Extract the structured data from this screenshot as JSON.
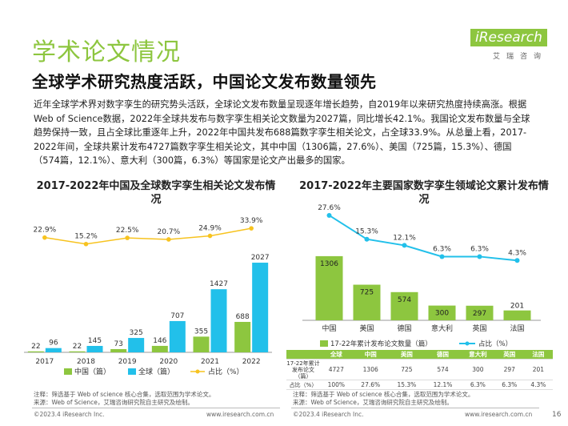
{
  "header": {
    "title": "学术论文情况",
    "subtitle": "全球学术研究热度活跃，中国论文发布数量领先",
    "logo_text": "iResearch",
    "logo_sub": "艾瑞咨询"
  },
  "body_text": "近年全球学术界对数字孪生的研究势头活跃，全球论文发布数量呈现逐年增长趋势，自2019年以来研究热度持续高涨。根据Web of Science数据，2022年全球共发布与数字孪生相关论文数量为2027篇，同比增长42.1%。我国论文发布数量与全球趋势保持一致，且占全球比重逐年上升，2022年中国共发布688篇数字孪生相关论文，占全球33.9%。从总量上看，2017-2022年间，全球共累计发布4727篇数字孪生相关论文，其中中国（1306篇，27.6%）、美国（725篇，15.3%）、德国（574篇，12.1%）、意大利（300篇，6.3%）等国家是论文产出最多的国家。",
  "chart_data": [
    {
      "type": "bar",
      "title": "2017-2022年中国及全球数字孪生相关论文发布情况",
      "categories": [
        "2017",
        "2018",
        "2019",
        "2020",
        "2021",
        "2022"
      ],
      "series": [
        {
          "name": "中国（篇）",
          "values": [
            22,
            22,
            73,
            146,
            355,
            688
          ]
        },
        {
          "name": "全球（篇）",
          "values": [
            96,
            145,
            325,
            707,
            1427,
            2027
          ]
        },
        {
          "name": "占比（%）",
          "type": "line",
          "values": [
            22.9,
            15.2,
            22.5,
            20.7,
            24.9,
            33.9
          ]
        }
      ],
      "value_labels": {
        "china": [
          "22",
          "22",
          "73",
          "146",
          "355",
          "688"
        ],
        "global": [
          "96",
          "145",
          "325",
          "707",
          "1427",
          "2027"
        ],
        "ratio": [
          "22.9%",
          "15.2%",
          "22.5%",
          "20.7%",
          "24.9%",
          "33.9%"
        ]
      },
      "ylim": [
        0,
        2100
      ],
      "ratio_range": [
        0,
        40
      ],
      "colors": {
        "china": "#8dc63f",
        "global": "#22c0ea",
        "ratio": "#f7c31f"
      },
      "legend": "bottom"
    },
    {
      "type": "bar",
      "title": "2017-2022年主要国家数字孪生领域论文累计发布情况",
      "categories": [
        "中国",
        "美国",
        "德国",
        "意大利",
        "英国",
        "法国"
      ],
      "series": [
        {
          "name": "17-22年累计发布论文数量（篇）",
          "values": [
            1306,
            725,
            574,
            300,
            297,
            201
          ]
        },
        {
          "name": "占比（%）",
          "type": "line",
          "values": [
            27.6,
            15.3,
            12.1,
            6.3,
            6.3,
            4.3
          ]
        }
      ],
      "value_labels": {
        "bars": [
          "1306",
          "725",
          "574",
          "300",
          "297",
          "201"
        ],
        "ratio": [
          "27.6%",
          "15.3%",
          "12.1%",
          "6.3%",
          "6.3%",
          "4.3%"
        ]
      },
      "ylim": [
        0,
        1500
      ],
      "ratio_range": [
        0,
        30
      ],
      "colors": {
        "bar": "#8dc63f",
        "ratio": "#22c0ea"
      },
      "legend": "bottom"
    }
  ],
  "table": {
    "headers": [
      "",
      "全球",
      "中国",
      "美国",
      "德国",
      "意大利",
      "英国",
      "法国"
    ],
    "rows": [
      {
        "label": "17-22年累计发布论文（篇）",
        "values": [
          "4727",
          "1306",
          "725",
          "574",
          "300",
          "297",
          "201"
        ]
      },
      {
        "label": "占比（%）",
        "values": [
          "100%",
          "27.6%",
          "15.3%",
          "12.1%",
          "6.3%",
          "6.3%",
          "4.3%"
        ]
      }
    ]
  },
  "notes": {
    "left": [
      "注释：筛选基于 Web of science 核心合集，选取范围为学术论文。",
      "来源：Web of Science，艾瑞咨询研究院自主研究及绘制。"
    ],
    "right": [
      "注释：筛选基于 Web of science 核心合集，选取范围为学术论文。",
      "来源：Web of Science，艾瑞咨询研究院自主研究及绘制。"
    ]
  },
  "footer": {
    "copyright": "©2023.4 iResearch Inc.",
    "url": "www.iresearch.com.cn",
    "page": "16"
  }
}
